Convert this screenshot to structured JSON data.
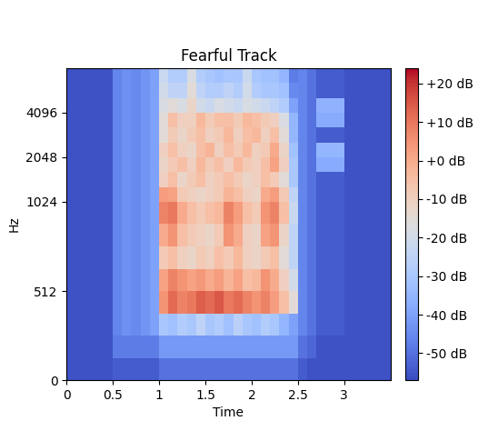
{
  "chart_data": {
    "type": "heatmap",
    "title": "Fearful Track",
    "x_label": "Time",
    "y_label": "Hz",
    "log": "y",
    "xlim": [
      0,
      3.5
    ],
    "xticks": [
      0,
      0.5,
      1,
      1.5,
      2,
      2.5,
      3
    ],
    "ylim": [
      0,
      8192
    ],
    "yticks": [
      0,
      512,
      1024,
      2048,
      4096
    ],
    "x_edges": [
      0,
      0.1,
      0.2,
      0.3,
      0.4,
      0.5,
      0.6,
      0.7,
      0.8,
      0.9,
      1.0,
      1.1,
      1.2,
      1.3,
      1.4,
      1.5,
      1.6,
      1.7,
      1.8,
      1.9,
      2.0,
      2.1,
      2.2,
      2.3,
      2.4,
      2.5,
      2.6,
      2.7,
      2.8,
      2.9,
      3.0,
      3.1,
      3.2,
      3.3,
      3.4,
      3.5
    ],
    "y_edges": [
      0,
      128,
      256,
      384,
      512,
      640,
      768,
      896,
      1024,
      1290,
      1625,
      2048,
      2580,
      3250,
      4096,
      5160,
      6500,
      8192
    ],
    "cells": [
      [
        -56,
        -56,
        -56,
        -56,
        -56,
        -54,
        -54,
        -54,
        -54,
        -54,
        -50,
        -50,
        -50,
        -50,
        -50,
        -50,
        -50,
        -50,
        -50,
        -50,
        -50,
        -50,
        -50,
        -50,
        -50,
        -54,
        -56,
        -56,
        -56,
        -56,
        -56,
        -56,
        -56,
        -56,
        -56
      ],
      [
        -56,
        -56,
        -56,
        -56,
        -56,
        -48,
        -48,
        -48,
        -48,
        -48,
        -42,
        -42,
        -42,
        -42,
        -42,
        -42,
        -42,
        -42,
        -42,
        -42,
        -42,
        -42,
        -42,
        -42,
        -42,
        -50,
        -52,
        -56,
        -56,
        -56,
        -56,
        -56,
        -56,
        -56,
        -56
      ],
      [
        -56,
        -56,
        -56,
        -56,
        -56,
        -46,
        -44,
        -45,
        -43,
        -40,
        -30,
        -32,
        -28,
        -30,
        -25,
        -30,
        -28,
        -32,
        -26,
        -30,
        -32,
        -28,
        -30,
        -35,
        -40,
        -46,
        -50,
        -54,
        -54,
        -54,
        -56,
        -56,
        -56,
        -56,
        -56
      ],
      [
        -56,
        -56,
        -56,
        -56,
        -56,
        -46,
        -44,
        -45,
        -43,
        -40,
        5,
        12,
        8,
        10,
        14,
        12,
        15,
        10,
        12,
        8,
        5,
        8,
        3,
        -5,
        -15,
        -46,
        -50,
        -54,
        -54,
        -54,
        -56,
        -56,
        -56,
        -56,
        -56
      ],
      [
        -56,
        -56,
        -56,
        -56,
        -56,
        -46,
        -44,
        -45,
        -43,
        -40,
        2,
        8,
        5,
        2,
        4,
        0,
        3,
        -2,
        2,
        -5,
        -3,
        5,
        0,
        -10,
        -20,
        -46,
        -50,
        -54,
        -54,
        -54,
        -56,
        -56,
        -56,
        -56,
        -56
      ],
      [
        -56,
        -56,
        -56,
        -56,
        -56,
        -46,
        -44,
        -45,
        -43,
        -40,
        -8,
        -5,
        -10,
        -12,
        -8,
        -10,
        -5,
        -8,
        -3,
        -10,
        -12,
        -8,
        -5,
        -15,
        -25,
        -46,
        -50,
        -54,
        -54,
        -54,
        -56,
        -56,
        -56,
        -56,
        -56
      ],
      [
        -56,
        -56,
        -56,
        -56,
        -56,
        -46,
        -44,
        -45,
        -43,
        -40,
        0,
        5,
        -5,
        -8,
        -10,
        -12,
        -8,
        5,
        0,
        -10,
        -12,
        2,
        5,
        -12,
        -25,
        -46,
        -50,
        -54,
        -54,
        -54,
        -56,
        -56,
        -56,
        -56,
        -56
      ],
      [
        -56,
        -56,
        -56,
        -56,
        -56,
        -46,
        -44,
        -45,
        -43,
        -40,
        8,
        10,
        0,
        -5,
        -8,
        -5,
        -3,
        8,
        3,
        -5,
        -8,
        5,
        8,
        -5,
        -22,
        -46,
        -50,
        -54,
        -54,
        -54,
        -56,
        -56,
        -56,
        -56,
        -56
      ],
      [
        -56,
        -56,
        -56,
        -56,
        -56,
        -46,
        -44,
        -45,
        -43,
        -40,
        3,
        2,
        -8,
        -10,
        -12,
        -10,
        -8,
        -2,
        -5,
        -10,
        -12,
        0,
        3,
        -8,
        -25,
        -46,
        -50,
        -54,
        -54,
        -54,
        -56,
        -56,
        -56,
        -56,
        -56
      ],
      [
        -56,
        -56,
        -56,
        -56,
        -56,
        -46,
        -44,
        -45,
        -43,
        -40,
        -10,
        -5,
        -12,
        -8,
        -5,
        -10,
        -8,
        -5,
        -8,
        -12,
        -10,
        -5,
        -8,
        -15,
        -30,
        -46,
        -50,
        -54,
        -54,
        -54,
        -56,
        -56,
        -56,
        -56,
        -56
      ],
      [
        -56,
        -56,
        -56,
        -56,
        -56,
        -46,
        -44,
        -45,
        -43,
        -40,
        -12,
        -8,
        -5,
        -10,
        -3,
        -8,
        -5,
        -10,
        -3,
        -8,
        -10,
        -5,
        2,
        -10,
        -30,
        -46,
        -50,
        -38,
        -38,
        -38,
        -56,
        -56,
        -56,
        -56,
        -56
      ],
      [
        -56,
        -56,
        -56,
        -56,
        -56,
        -46,
        -44,
        -45,
        -43,
        -40,
        -10,
        -5,
        -10,
        -12,
        -5,
        -2,
        -10,
        -5,
        -8,
        -3,
        -10,
        -8,
        0,
        -12,
        -32,
        -46,
        -50,
        -35,
        -35,
        -35,
        -56,
        -56,
        -56,
        -56,
        -56
      ],
      [
        -56,
        -56,
        -56,
        -56,
        -56,
        -46,
        -44,
        -45,
        -43,
        -40,
        -15,
        -8,
        -12,
        -8,
        -5,
        -10,
        -8,
        -3,
        -10,
        -5,
        -3,
        -10,
        -5,
        -15,
        -35,
        -46,
        -50,
        -54,
        -54,
        -54,
        -56,
        -56,
        -56,
        -56,
        -56
      ],
      [
        -56,
        -56,
        -56,
        -56,
        -56,
        -46,
        -44,
        -45,
        -43,
        -40,
        -15,
        -5,
        -10,
        -10,
        -3,
        -8,
        -5,
        -5,
        -8,
        -3,
        -5,
        -8,
        -10,
        -18,
        -35,
        -46,
        -50,
        -38,
        -38,
        -38,
        -56,
        -56,
        -56,
        -56,
        -56
      ],
      [
        -56,
        -56,
        -56,
        -56,
        -56,
        -46,
        -44,
        -45,
        -43,
        -40,
        -18,
        -15,
        -18,
        -12,
        -20,
        -22,
        -18,
        -20,
        -22,
        -18,
        -20,
        -22,
        -25,
        -28,
        -40,
        -46,
        -50,
        -36,
        -36,
        -36,
        -56,
        -56,
        -56,
        -56,
        -56
      ],
      [
        -56,
        -56,
        -56,
        -56,
        -56,
        -46,
        -44,
        -45,
        -43,
        -40,
        -20,
        -25,
        -25,
        -15,
        -25,
        -28,
        -28,
        -25,
        -28,
        -20,
        -28,
        -30,
        -30,
        -32,
        -45,
        -46,
        -50,
        -54,
        -54,
        -54,
        -56,
        -56,
        -56,
        -56,
        -56
      ],
      [
        -56,
        -56,
        -56,
        -56,
        -56,
        -46,
        -44,
        -45,
        -43,
        -40,
        -22,
        -28,
        -28,
        -18,
        -28,
        -30,
        -32,
        -30,
        -30,
        -22,
        -30,
        -32,
        -32,
        -35,
        -48,
        -46,
        -50,
        -54,
        -54,
        -54,
        -56,
        -56,
        -56,
        -56,
        -56
      ]
    ],
    "colorbar_lim": [
      -57,
      24
    ],
    "colorbar_ticks": [
      {
        "value": 20,
        "label": "+20 dB"
      },
      {
        "value": 10,
        "label": "+10 dB"
      },
      {
        "value": 0,
        "label": "+0 dB"
      },
      {
        "value": -10,
        "label": "-10 dB"
      },
      {
        "value": -20,
        "label": "-20 dB"
      },
      {
        "value": -30,
        "label": "-30 dB"
      },
      {
        "value": -40,
        "label": "-40 dB"
      },
      {
        "value": -50,
        "label": "-50 dB"
      }
    ]
  }
}
